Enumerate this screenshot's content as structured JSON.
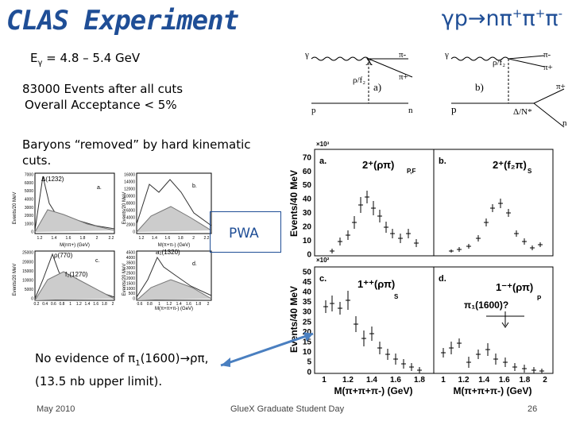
{
  "title": "CLAS Experiment",
  "reaction": {
    "base": "γp→nπ",
    "sup1": "+",
    "mid1": "π",
    "sup2": "+",
    "mid2": "π",
    "sup3": "-"
  },
  "energy": {
    "prefix": "E",
    "sub": "γ",
    "rest": " = 4.8 – 5.4 GeV"
  },
  "events_line1": "83000 Events after all cuts",
  "events_line2": "Overall Acceptance < 5%",
  "baryons_text": "Baryons “removed” by hard kinematic cuts.",
  "pwa_label": "PWA",
  "evidence": {
    "line1_a": "No evidence of π",
    "line1_sub": "1",
    "line1_b": "(1600)→ρπ,",
    "line2": "(13.5 nb upper limit)."
  },
  "footer": {
    "date": "May 2010",
    "event": "GlueX Graduate Student Day",
    "page": "26"
  },
  "colors": {
    "accent": "#1f4e96",
    "arrow": "#4a7fc0"
  },
  "feynman": {
    "a": {
      "label": "a)",
      "gamma": "γ",
      "x": "X",
      "pi_top": "π-",
      "rho": "ρ/f₂",
      "pi_bot": "π+",
      "p": "p",
      "n": "n"
    },
    "b": {
      "label": "b)",
      "gamma": "γ",
      "rho": "ρ/f₂",
      "pi_top": "π-",
      "pi_mid": "π+",
      "p": "p",
      "delta": "Δ/N*",
      "pi_bot": "π+",
      "n": "n"
    }
  },
  "left_plots": {
    "top_left": {
      "peak": "Δ(1232)",
      "tag": "a.",
      "ylabel": "Events/20 MeV",
      "xlabel": "M(nπ+) (GeV)",
      "yticks": [
        "7000",
        "6000",
        "5000",
        "4000",
        "3000",
        "2000",
        "1000",
        "0"
      ],
      "xticks": [
        "1.2",
        "1.4",
        "1.6",
        "1.8",
        "2",
        "2.2"
      ]
    },
    "top_right": {
      "tag": "b.",
      "ylabel": "Events/20 MeV",
      "xlabel": "M(π+π-) (GeV)",
      "yticks": [
        "16000",
        "14000",
        "12000",
        "10000",
        "8000",
        "6000",
        "4000",
        "2000",
        "0"
      ],
      "xticks": [
        "1.2",
        "1.4",
        "1.6",
        "1.8",
        "2",
        "2.2"
      ]
    },
    "bottom_left": {
      "peak1": "ρ(770)",
      "peak2": "f₂(1270)",
      "tag": "c.",
      "ylabel": "Events/20 MeV",
      "xlabel": "M(π+π-) (GeV)",
      "yticks": [
        "25000",
        "20000",
        "15000",
        "10000",
        "5000",
        "0"
      ],
      "xticks": [
        "0.2",
        "0.4",
        "0.6",
        "0.8",
        "1",
        "1.2",
        "1.4",
        "1.6",
        "1.8",
        "2"
      ]
    },
    "bottom_right": {
      "peak": "a₂(1320)",
      "tag": "d.",
      "ylabel": "Events/20 MeV",
      "xlabel": "M(π+π+π-) (GeV)",
      "yticks": [
        "4500",
        "4000",
        "3500",
        "3000",
        "2500",
        "2000",
        "1500",
        "1000",
        "500",
        "0"
      ],
      "xticks": [
        "0.6",
        "0.8",
        "1",
        "1.2",
        "1.4",
        "1.6",
        "1.8",
        "2"
      ]
    }
  },
  "right_plots": {
    "exp_top": "×10³",
    "exp_bottom": "×10²",
    "ylabel": "Events/40 MeV",
    "xlabel": "M(π+π+π-) (GeV)",
    "a": {
      "tag": "a.",
      "wave": "2⁺(ρπ)",
      "sub": "P,F",
      "yticks": [
        "70",
        "60",
        "50",
        "40",
        "30",
        "20",
        "10",
        "0"
      ]
    },
    "b": {
      "tag": "b.",
      "wave": "2⁺(f₂π)",
      "sub": "S"
    },
    "c": {
      "tag": "c.",
      "wave": "1⁺⁺(ρπ)",
      "sub": "S",
      "yticks": [
        "50",
        "45",
        "40",
        "35",
        "30",
        "25",
        "20",
        "15",
        "10",
        "5",
        "0"
      ]
    },
    "d": {
      "tag": "d.",
      "wave": "1⁻⁺(ρπ)",
      "sub": "P",
      "note": "π₁(1600)?"
    },
    "xticks_left": [
      "1",
      "1.2",
      "1.4",
      "1.6",
      "1.8"
    ],
    "xticks_right": [
      "1",
      "1.2",
      "1.4",
      "1.6",
      "1.8",
      "2"
    ]
  }
}
